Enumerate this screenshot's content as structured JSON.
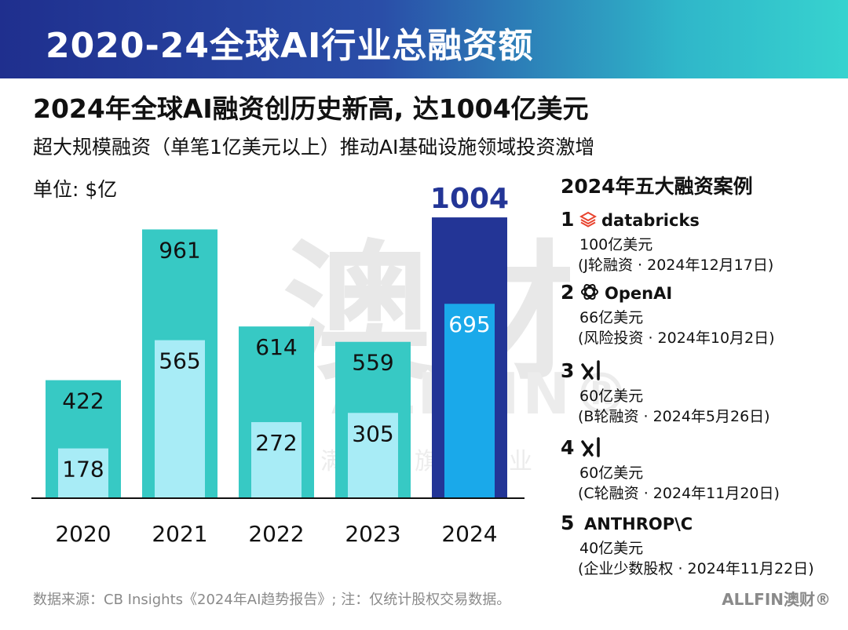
{
  "banner": {
    "title": "2020-24全球AI行业总融资额"
  },
  "headline": "2024年全球AI融资创历史新高, 达1004亿美元",
  "subheadline": "超大规模融资（单笔1亿美元以上）推动AI基础设施领域投资激增",
  "unit": "单位: $亿",
  "watermark": {
    "big": "澳财",
    "brand": "ALLFIN®",
    "small": "博满集团旗下企业"
  },
  "chart_data": {
    "type": "bar",
    "categories": [
      "2020",
      "2021",
      "2022",
      "2023",
      "2024"
    ],
    "series": [
      {
        "values": [
          422,
          961,
          614,
          559,
          1004
        ]
      },
      {
        "values": [
          178,
          565,
          272,
          305,
          695
        ]
      }
    ],
    "highlight_category": "2024",
    "ylim": [
      0,
      1080
    ],
    "grid": false,
    "colors": {
      "total": "#37c9c4",
      "inner": "#a8ecf6",
      "total_highlight": "#233596",
      "inner_highlight": "#1aa9ea",
      "highlight_label": "#233596",
      "axis": "#111111"
    }
  },
  "cases": {
    "title": "2024年五大融资案例",
    "items": [
      {
        "num": "1",
        "logo_icon": "databricks-icon",
        "logo_text": "databricks",
        "amount": "100亿美元",
        "detail": "(J轮融资 · 2024年12月17日)"
      },
      {
        "num": "2",
        "logo_icon": "openai-icon",
        "logo_text": "OpenAI",
        "amount": "66亿美元",
        "detail": "(风险投资 · 2024年10月2日)"
      },
      {
        "num": "3",
        "logo_icon": "xai-icon",
        "logo_text": "",
        "amount": "60亿美元",
        "detail": "(B轮融资 · 2024年5月26日)"
      },
      {
        "num": "4",
        "logo_icon": "xai-icon",
        "logo_text": "",
        "amount": "60亿美元",
        "detail": "(C轮融资 · 2024年11月20日)"
      },
      {
        "num": "5",
        "logo_icon": "anthropic-icon",
        "logo_text": "ANTHROP\\C",
        "amount": "40亿美元",
        "detail": "(企业少数股权 · 2024年11月22日)"
      }
    ]
  },
  "footer": {
    "source": "数据来源：CB Insights《2024年AI趋势报告》; 注：仅统计股权交易数据。",
    "logo": "ALLFIN澳财®"
  }
}
